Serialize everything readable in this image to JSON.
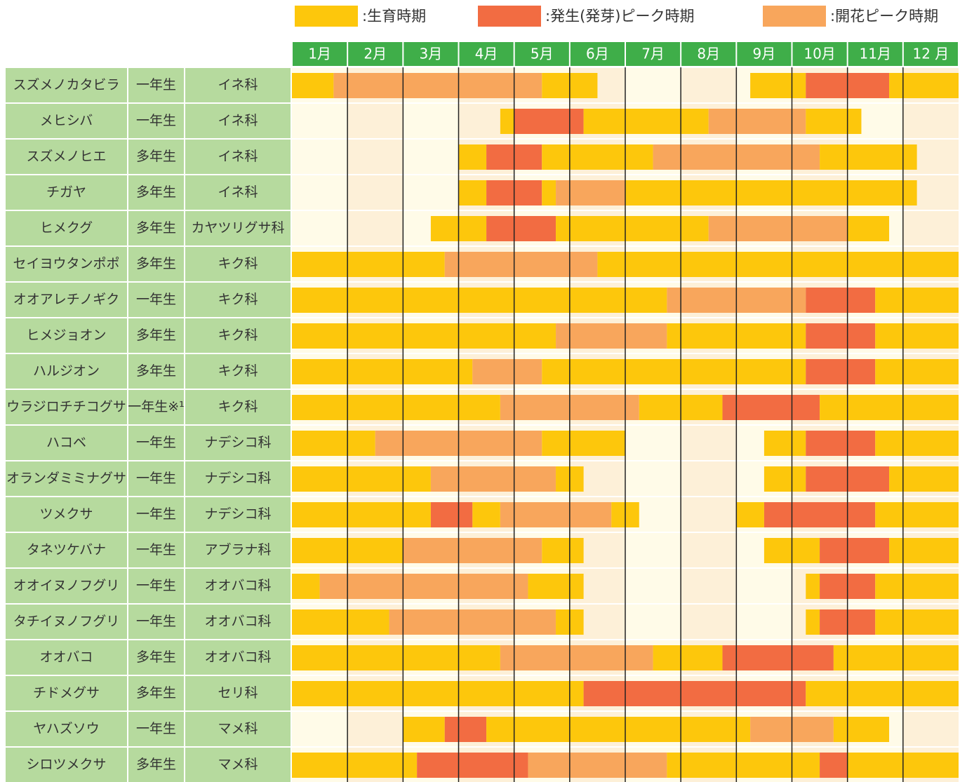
{
  "chart_data": {
    "type": "gantt",
    "legend": [
      {
        "label": ":生育時期",
        "color": "#fdc70c"
      },
      {
        "label": ":発生(発芽)ピーク時期",
        "color": "#f26c42"
      },
      {
        "label": ":開花ピーク時期",
        "color": "#f8a65c"
      }
    ],
    "months": [
      "1月",
      "2月",
      "3月",
      "4月",
      "5月",
      "6月",
      "7月",
      "8月",
      "9月",
      "10月",
      "11月",
      "12 月"
    ],
    "xlim": [
      0,
      12
    ],
    "rows": [
      {
        "name": "スズメノカタビラ",
        "type": "一年生",
        "family": "イネ科",
        "segments": [
          {
            "start": 0,
            "end": 0.75,
            "kind": 0
          },
          {
            "start": 0.75,
            "end": 4.5,
            "kind": 2
          },
          {
            "start": 4.5,
            "end": 5.5,
            "kind": 0
          },
          {
            "start": 8.25,
            "end": 9.25,
            "kind": 0
          },
          {
            "start": 9.25,
            "end": 10.75,
            "kind": 1
          },
          {
            "start": 10.75,
            "end": 12,
            "kind": 0
          }
        ]
      },
      {
        "name": "メヒシバ",
        "type": "一年生",
        "family": "イネ科",
        "segments": [
          {
            "start": 3.75,
            "end": 4,
            "kind": 0
          },
          {
            "start": 4,
            "end": 5.25,
            "kind": 1
          },
          {
            "start": 5.25,
            "end": 7.5,
            "kind": 0
          },
          {
            "start": 7.5,
            "end": 9.25,
            "kind": 2
          },
          {
            "start": 9.25,
            "end": 10.25,
            "kind": 0
          }
        ]
      },
      {
        "name": "スズメノヒエ",
        "type": "多年生",
        "family": "イネ科",
        "segments": [
          {
            "start": 3,
            "end": 3.5,
            "kind": 0
          },
          {
            "start": 3.5,
            "end": 4.5,
            "kind": 1
          },
          {
            "start": 4.5,
            "end": 6.5,
            "kind": 0
          },
          {
            "start": 6.5,
            "end": 9.5,
            "kind": 2
          },
          {
            "start": 9.5,
            "end": 11.25,
            "kind": 0
          }
        ]
      },
      {
        "name": "チガヤ",
        "type": "多年生",
        "family": "イネ科",
        "segments": [
          {
            "start": 3,
            "end": 3.5,
            "kind": 0
          },
          {
            "start": 3.5,
            "end": 4.5,
            "kind": 1
          },
          {
            "start": 4.5,
            "end": 4.75,
            "kind": 0
          },
          {
            "start": 4.75,
            "end": 6,
            "kind": 2
          },
          {
            "start": 6,
            "end": 11.25,
            "kind": 0
          }
        ]
      },
      {
        "name": "ヒメクグ",
        "type": "多年生",
        "family": "カヤツリグサ科",
        "segments": [
          {
            "start": 2.5,
            "end": 3.5,
            "kind": 0
          },
          {
            "start": 3.5,
            "end": 4.75,
            "kind": 1
          },
          {
            "start": 4.75,
            "end": 7.5,
            "kind": 0
          },
          {
            "start": 7.5,
            "end": 10,
            "kind": 2
          },
          {
            "start": 10,
            "end": 10.75,
            "kind": 0
          }
        ]
      },
      {
        "name": "セイヨウタンポポ",
        "type": "多年生",
        "family": "キク科",
        "segments": [
          {
            "start": 0,
            "end": 2.75,
            "kind": 0
          },
          {
            "start": 2.75,
            "end": 5.5,
            "kind": 2
          },
          {
            "start": 5.5,
            "end": 12,
            "kind": 0
          }
        ]
      },
      {
        "name": "オオアレチノギク",
        "type": "一年生",
        "family": "キク科",
        "segments": [
          {
            "start": 0,
            "end": 6.75,
            "kind": 0
          },
          {
            "start": 6.75,
            "end": 9.25,
            "kind": 2
          },
          {
            "start": 9.25,
            "end": 10.5,
            "kind": 1
          },
          {
            "start": 10.5,
            "end": 12,
            "kind": 0
          }
        ]
      },
      {
        "name": "ヒメジョオン",
        "type": "多年生",
        "family": "キク科",
        "segments": [
          {
            "start": 0,
            "end": 4.75,
            "kind": 0
          },
          {
            "start": 4.75,
            "end": 6.75,
            "kind": 2
          },
          {
            "start": 6.75,
            "end": 9.25,
            "kind": 0
          },
          {
            "start": 9.25,
            "end": 10.5,
            "kind": 1
          },
          {
            "start": 10.5,
            "end": 12,
            "kind": 0
          }
        ]
      },
      {
        "name": "ハルジオン",
        "type": "多年生",
        "family": "キク科",
        "segments": [
          {
            "start": 0,
            "end": 3.25,
            "kind": 0
          },
          {
            "start": 3.25,
            "end": 4.5,
            "kind": 2
          },
          {
            "start": 4.5,
            "end": 9.25,
            "kind": 0
          },
          {
            "start": 9.25,
            "end": 10.5,
            "kind": 1
          },
          {
            "start": 10.5,
            "end": 12,
            "kind": 0
          }
        ]
      },
      {
        "name": "ウラジロチチコグサ",
        "type": "一年生※¹",
        "family": "キク科",
        "segments": [
          {
            "start": 0,
            "end": 3.75,
            "kind": 0
          },
          {
            "start": 3.75,
            "end": 6.25,
            "kind": 2
          },
          {
            "start": 6.25,
            "end": 7.75,
            "kind": 0
          },
          {
            "start": 7.75,
            "end": 9.5,
            "kind": 1
          },
          {
            "start": 9.5,
            "end": 12,
            "kind": 0
          }
        ]
      },
      {
        "name": "ハコベ",
        "type": "一年生",
        "family": "ナデシコ科",
        "segments": [
          {
            "start": 0,
            "end": 1.5,
            "kind": 0
          },
          {
            "start": 1.5,
            "end": 4.5,
            "kind": 2
          },
          {
            "start": 4.5,
            "end": 6,
            "kind": 0
          },
          {
            "start": 8.5,
            "end": 9.25,
            "kind": 0
          },
          {
            "start": 9.25,
            "end": 10.5,
            "kind": 1
          },
          {
            "start": 10.5,
            "end": 12,
            "kind": 0
          }
        ]
      },
      {
        "name": "オランダミミナグサ",
        "type": "一年生",
        "family": "ナデシコ科",
        "segments": [
          {
            "start": 0,
            "end": 2.5,
            "kind": 0
          },
          {
            "start": 2.5,
            "end": 4.75,
            "kind": 2
          },
          {
            "start": 4.75,
            "end": 5.25,
            "kind": 0
          },
          {
            "start": 8.5,
            "end": 9.25,
            "kind": 0
          },
          {
            "start": 9.25,
            "end": 10.75,
            "kind": 1
          },
          {
            "start": 10.75,
            "end": 12,
            "kind": 0
          }
        ]
      },
      {
        "name": "ツメクサ",
        "type": "一年生",
        "family": "ナデシコ科",
        "segments": [
          {
            "start": 0,
            "end": 2.5,
            "kind": 0
          },
          {
            "start": 2.5,
            "end": 3.25,
            "kind": 1
          },
          {
            "start": 3.25,
            "end": 3.75,
            "kind": 0
          },
          {
            "start": 3.75,
            "end": 5.75,
            "kind": 2
          },
          {
            "start": 5.75,
            "end": 6.25,
            "kind": 0
          },
          {
            "start": 8,
            "end": 8.5,
            "kind": 0
          },
          {
            "start": 8.5,
            "end": 10.5,
            "kind": 1
          },
          {
            "start": 10.5,
            "end": 12,
            "kind": 0
          }
        ]
      },
      {
        "name": "タネツケバナ",
        "type": "一年生",
        "family": "アブラナ科",
        "segments": [
          {
            "start": 0,
            "end": 2,
            "kind": 0
          },
          {
            "start": 2,
            "end": 4.5,
            "kind": 2
          },
          {
            "start": 4.5,
            "end": 5.25,
            "kind": 0
          },
          {
            "start": 8.5,
            "end": 9.5,
            "kind": 0
          },
          {
            "start": 9.5,
            "end": 10.75,
            "kind": 1
          },
          {
            "start": 10.75,
            "end": 12,
            "kind": 0
          }
        ]
      },
      {
        "name": "オオイヌノフグリ",
        "type": "一年生",
        "family": "オオバコ科",
        "segments": [
          {
            "start": 0,
            "end": 0.5,
            "kind": 0
          },
          {
            "start": 0.5,
            "end": 4.25,
            "kind": 2
          },
          {
            "start": 4.25,
            "end": 5.25,
            "kind": 0
          },
          {
            "start": 9.25,
            "end": 9.5,
            "kind": 0
          },
          {
            "start": 9.5,
            "end": 10.5,
            "kind": 1
          },
          {
            "start": 10.5,
            "end": 12,
            "kind": 0
          }
        ]
      },
      {
        "name": "タチイヌノフグリ",
        "type": "一年生",
        "family": "オオバコ科",
        "segments": [
          {
            "start": 0,
            "end": 1.75,
            "kind": 0
          },
          {
            "start": 1.75,
            "end": 4.75,
            "kind": 2
          },
          {
            "start": 4.75,
            "end": 5.25,
            "kind": 0
          },
          {
            "start": 9.25,
            "end": 9.5,
            "kind": 0
          },
          {
            "start": 9.5,
            "end": 10.5,
            "kind": 1
          },
          {
            "start": 10.5,
            "end": 12,
            "kind": 0
          }
        ]
      },
      {
        "name": "オオバコ",
        "type": "多年生",
        "family": "オオバコ科",
        "segments": [
          {
            "start": 0,
            "end": 3.75,
            "kind": 0
          },
          {
            "start": 3.75,
            "end": 6.5,
            "kind": 2
          },
          {
            "start": 6.5,
            "end": 7.75,
            "kind": 0
          },
          {
            "start": 7.75,
            "end": 9.75,
            "kind": 1
          },
          {
            "start": 9.75,
            "end": 12,
            "kind": 0
          }
        ]
      },
      {
        "name": "チドメグサ",
        "type": "多年生",
        "family": "セリ科",
        "segments": [
          {
            "start": 0,
            "end": 5.25,
            "kind": 0
          },
          {
            "start": 5.25,
            "end": 9.25,
            "kind": 1
          },
          {
            "start": 9.25,
            "end": 12,
            "kind": 0
          }
        ]
      },
      {
        "name": "ヤハズソウ",
        "type": "一年生",
        "family": "マメ科",
        "segments": [
          {
            "start": 2,
            "end": 2.75,
            "kind": 0
          },
          {
            "start": 2.75,
            "end": 3.5,
            "kind": 1
          },
          {
            "start": 3.5,
            "end": 8.25,
            "kind": 0
          },
          {
            "start": 8.25,
            "end": 9.75,
            "kind": 2
          },
          {
            "start": 9.75,
            "end": 10.75,
            "kind": 0
          }
        ]
      },
      {
        "name": "シロツメクサ",
        "type": "多年生",
        "family": "マメ科",
        "segments": [
          {
            "start": 0,
            "end": 2.25,
            "kind": 0
          },
          {
            "start": 2.25,
            "end": 4.25,
            "kind": 1
          },
          {
            "start": 4.25,
            "end": 6.75,
            "kind": 2
          },
          {
            "start": 6.75,
            "end": 9.5,
            "kind": 0
          },
          {
            "start": 9.5,
            "end": 10,
            "kind": 1
          },
          {
            "start": 10,
            "end": 12,
            "kind": 0
          }
        ]
      }
    ]
  }
}
